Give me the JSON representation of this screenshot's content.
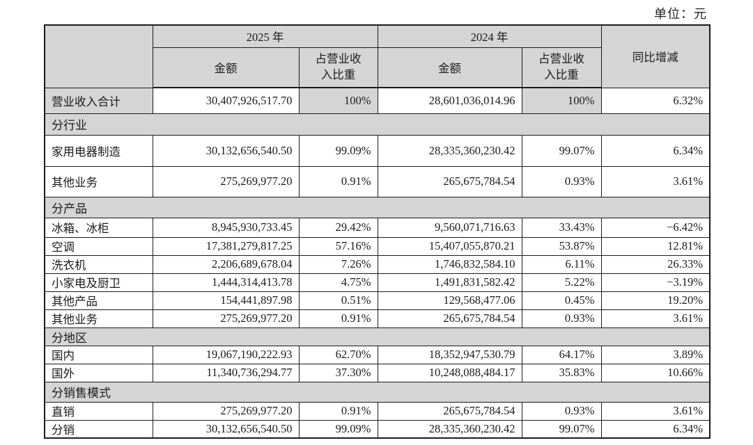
{
  "unit_label": "单位：元",
  "table": {
    "headers": {
      "year_2025": "2025 年",
      "year_2024": "2024 年",
      "amount": "金额",
      "pct_of_revenue": "占营业收入比重",
      "yoy": "同比增减"
    },
    "rows": [
      {
        "type": "data",
        "label": "营业收入合计",
        "amt2025": "30,407,926,517.70",
        "pct2025": "100%",
        "amt2024": "28,601,036,014.96",
        "pct2024": "100%",
        "yoy": "6.32%"
      },
      {
        "type": "section",
        "label": "分行业"
      },
      {
        "type": "data",
        "label": "家用电器制造",
        "amt2025": "30,132,656,540.50",
        "pct2025": "99.09%",
        "amt2024": "28,335,360,230.42",
        "pct2024": "99.07%",
        "yoy": "6.34%"
      },
      {
        "type": "data",
        "label": "其他业务",
        "amt2025": "275,269,977.20",
        "pct2025": "0.91%",
        "amt2024": "265,675,784.54",
        "pct2024": "0.93%",
        "yoy": "3.61%"
      },
      {
        "type": "section",
        "label": "分产品"
      },
      {
        "type": "data",
        "label": "冰箱、冰柜",
        "amt2025": "8,945,930,733.45",
        "pct2025": "29.42%",
        "amt2024": "9,560,071,716.63",
        "pct2024": "33.43%",
        "yoy": "−6.42%"
      },
      {
        "type": "data",
        "label": "空调",
        "amt2025": "17,381,279,817.25",
        "pct2025": "57.16%",
        "amt2024": "15,407,055,870.21",
        "pct2024": "53.87%",
        "yoy": "12.81%"
      },
      {
        "type": "data",
        "label": "洗衣机",
        "amt2025": "2,206,689,678.04",
        "pct2025": "7.26%",
        "amt2024": "1,746,832,584.10",
        "pct2024": "6.11%",
        "yoy": "26.33%"
      },
      {
        "type": "data",
        "label": "小家电及厨卫",
        "amt2025": "1,444,314,413.78",
        "pct2025": "4.75%",
        "amt2024": "1,491,831,582.42",
        "pct2024": "5.22%",
        "yoy": "−3.19%"
      },
      {
        "type": "data",
        "label": "其他产品",
        "amt2025": "154,441,897.98",
        "pct2025": "0.51%",
        "amt2024": "129,568,477.06",
        "pct2024": "0.45%",
        "yoy": "19.20%"
      },
      {
        "type": "data",
        "label": "其他业务",
        "amt2025": "275,269,977.20",
        "pct2025": "0.91%",
        "amt2024": "265,675,784.54",
        "pct2024": "0.93%",
        "yoy": "3.61%"
      },
      {
        "type": "section",
        "label": "分地区"
      },
      {
        "type": "data",
        "label": "国内",
        "amt2025": "19,067,190,222.93",
        "pct2025": "62.70%",
        "amt2024": "18,352,947,530.79",
        "pct2024": "64.17%",
        "yoy": "3.89%"
      },
      {
        "type": "data",
        "label": "国外",
        "amt2025": "11,340,736,294.77",
        "pct2025": "37.30%",
        "amt2024": "10,248,088,484.17",
        "pct2024": "35.83%",
        "yoy": "10.66%"
      },
      {
        "type": "section",
        "label": "分销售模式"
      },
      {
        "type": "data",
        "label": "直销",
        "amt2025": "275,269,977.20",
        "pct2025": "0.91%",
        "amt2024": "265,675,784.54",
        "pct2024": "0.93%",
        "yoy": "3.61%"
      },
      {
        "type": "data",
        "label": "分销",
        "amt2025": "30,132,656,540.50",
        "pct2025": "99.09%",
        "amt2024": "28,335,360,230.42",
        "pct2024": "99.07%",
        "yoy": "6.34%"
      }
    ]
  }
}
